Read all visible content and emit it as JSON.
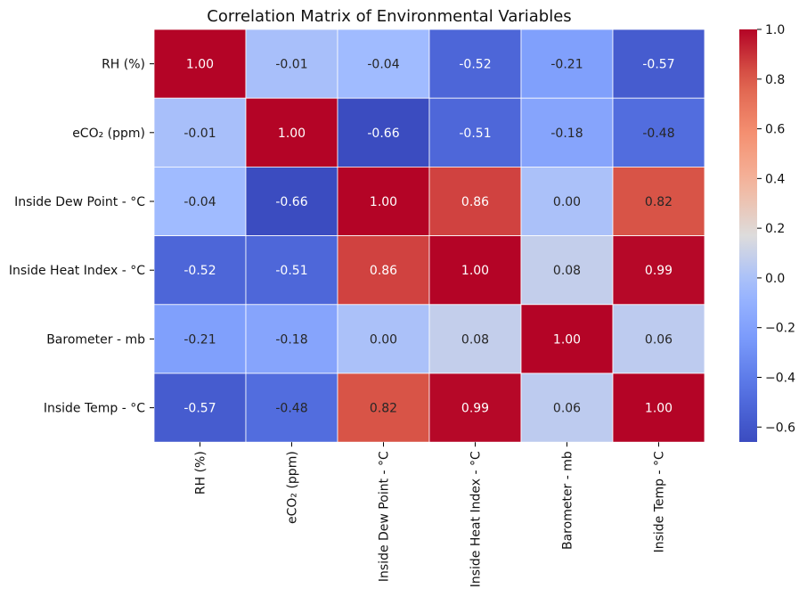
{
  "chart_data": {
    "type": "heatmap",
    "title": "Correlation Matrix of Environmental Variables",
    "xlabel": "",
    "ylabel": "",
    "rows": [
      "RH (%)",
      "eCO₂ (ppm)",
      "Inside Dew Point - °C",
      "Inside Heat Index - °C",
      "Barometer - mb",
      "Inside Temp - °C"
    ],
    "columns": [
      "RH (%)",
      "eCO₂ (ppm)",
      "Inside Dew Point - °C",
      "Inside Heat Index - °C",
      "Barometer - mb",
      "Inside Temp - °C"
    ],
    "values": [
      [
        1.0,
        -0.01,
        -0.04,
        -0.52,
        -0.21,
        -0.57
      ],
      [
        -0.01,
        1.0,
        -0.66,
        -0.51,
        -0.18,
        -0.48
      ],
      [
        -0.04,
        -0.66,
        1.0,
        0.86,
        0.0,
        0.82
      ],
      [
        -0.52,
        -0.51,
        0.86,
        1.0,
        0.08,
        0.99
      ],
      [
        -0.21,
        -0.18,
        0.0,
        0.08,
        1.0,
        0.06
      ],
      [
        -0.57,
        -0.48,
        0.82,
        0.99,
        0.06,
        1.0
      ]
    ],
    "colormap": "coolwarm",
    "colorbar": {
      "range": [
        -0.66,
        1.0
      ],
      "ticks": [
        1.0,
        0.8,
        0.6,
        0.4,
        0.2,
        0.0,
        -0.2,
        -0.4,
        -0.6
      ],
      "tick_labels": [
        "1.0",
        "0.8",
        "0.6",
        "0.4",
        "0.2",
        "0.0",
        "−0.2",
        "−0.4",
        "−0.6"
      ]
    },
    "annotations": true,
    "annotation_format": "2 decimals",
    "grid": true,
    "cell_line_color": "#ffffff"
  }
}
